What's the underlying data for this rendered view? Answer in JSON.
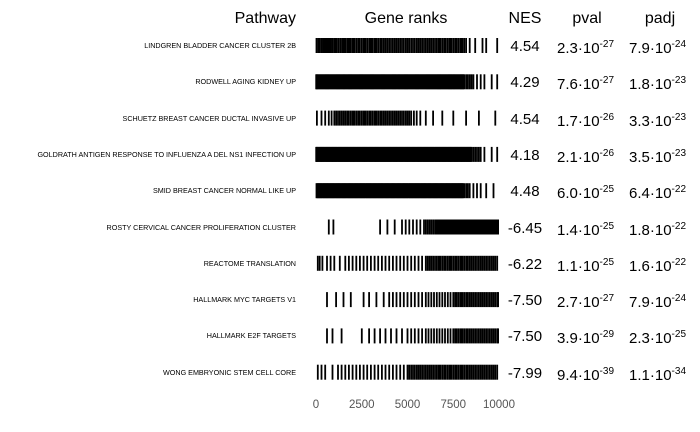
{
  "chart_data": {
    "type": "table",
    "columns": [
      "Pathway",
      "Gene ranks",
      "NES",
      "pval",
      "padj"
    ],
    "x_axis": {
      "ticks": [
        0,
        2500,
        5000,
        7500,
        10000
      ],
      "tick_labels": [
        "0",
        "2500",
        "5000",
        "7500",
        "10000"
      ],
      "xlim": [
        0,
        10000
      ]
    },
    "rows": [
      {
        "pathway": "LINDGREN BLADDER CANCER CLUSTER 2B",
        "nes": "4.54",
        "pval": {
          "mantissa": "2.3",
          "exponent": "-27"
        },
        "padj": {
          "mantissa": "7.9",
          "exponent": "-24"
        },
        "gene_ranks": [
          30,
          120,
          200,
          300,
          380,
          460,
          520,
          560,
          600,
          680,
          760,
          820,
          900,
          1000,
          1080,
          1150,
          1250,
          1350,
          1450,
          1500,
          1550,
          1600,
          1700,
          1800,
          1850,
          1900,
          2000,
          2100,
          2200,
          2300,
          2400,
          2500,
          2600,
          2700,
          2800,
          2900,
          3000,
          3050,
          3100,
          3200,
          3300,
          3400,
          3500,
          3600,
          3700,
          3800,
          3900,
          4000,
          4100,
          4200,
          4300,
          4400,
          4500,
          4600,
          4700,
          4800,
          4900,
          5000,
          5100,
          5200,
          5300,
          5400,
          5500,
          5600,
          5700,
          5800,
          5900,
          6000,
          6100,
          6200,
          6300,
          6400,
          6500,
          6600,
          6700,
          6800,
          6900,
          7000,
          7100,
          7200,
          7300,
          7400,
          7500,
          7600,
          7700,
          7800,
          7900,
          8000,
          8100,
          8200,
          8400,
          8700,
          9100,
          9300,
          9900
        ]
      },
      {
        "pathway": "RODWELL AGING KIDNEY UP",
        "nes": "4.29",
        "pval": {
          "mantissa": "7.6",
          "exponent": "-27"
        },
        "padj": {
          "mantissa": "1.8",
          "exponent": "-23"
        },
        "gene_ranks": [
          10,
          60,
          120,
          180,
          240,
          300,
          360,
          420,
          480,
          540,
          600,
          660,
          720,
          780,
          840,
          900,
          960,
          1020,
          1080,
          1140,
          1200,
          1260,
          1320,
          1380,
          1440,
          1500,
          1560,
          1620,
          1680,
          1740,
          1800,
          1860,
          1920,
          1980,
          2040,
          2100,
          2160,
          2220,
          2280,
          2340,
          2400,
          2460,
          2520,
          2580,
          2640,
          2700,
          2760,
          2820,
          2880,
          2940,
          3000,
          3060,
          3120,
          3180,
          3240,
          3300,
          3360,
          3420,
          3480,
          3540,
          3600,
          3660,
          3720,
          3780,
          3840,
          3900,
          3960,
          4020,
          4080,
          4140,
          4200,
          4260,
          4320,
          4380,
          4440,
          4500,
          4560,
          4620,
          4680,
          4740,
          4800,
          4860,
          4920,
          4980,
          5040,
          5100,
          5160,
          5220,
          5280,
          5340,
          5400,
          5460,
          5520,
          5580,
          5640,
          5700,
          5760,
          5820,
          5880,
          5940,
          6000,
          6060,
          6120,
          6180,
          6240,
          6300,
          6360,
          6420,
          6480,
          6540,
          6600,
          6660,
          6720,
          6780,
          6840,
          6900,
          6960,
          7020,
          7080,
          7140,
          7200,
          7260,
          7320,
          7380,
          7440,
          7500,
          7560,
          7620,
          7680,
          7740,
          7800,
          7860,
          7920,
          7980,
          8040,
          8100,
          8200,
          8300,
          8400,
          8500,
          8600,
          8800,
          9000,
          9200,
          9600,
          9900
        ]
      },
      {
        "pathway": "SCHUETZ BREAST CANCER DUCTAL INVASIVE UP",
        "nes": "4.54",
        "pval": {
          "mantissa": "1.7",
          "exponent": "-26"
        },
        "padj": {
          "mantissa": "3.3",
          "exponent": "-23"
        },
        "gene_ranks": [
          50,
          300,
          500,
          700,
          850,
          1000,
          1100,
          1200,
          1300,
          1400,
          1500,
          1600,
          1700,
          1800,
          1900,
          2000,
          2100,
          2200,
          2300,
          2400,
          2500,
          2600,
          2700,
          2800,
          2900,
          3000,
          3100,
          3200,
          3300,
          3400,
          3500,
          3600,
          3700,
          3800,
          3900,
          4000,
          4100,
          4200,
          4300,
          4400,
          4500,
          4600,
          4700,
          4800,
          4900,
          5000,
          5100,
          5200,
          5350,
          5500,
          5700,
          6000,
          6400,
          6900,
          7500,
          8200,
          8900,
          9800
        ]
      },
      {
        "pathway": "GOLDRATH ANTIGEN RESPONSE TO INFLUENZA A DEL NS1 INFECTION UP",
        "nes": "4.18",
        "pval": {
          "mantissa": "2.1",
          "exponent": "-26"
        },
        "padj": {
          "mantissa": "3.5",
          "exponent": "-23"
        },
        "gene_ranks": [
          10,
          50,
          100,
          150,
          200,
          250,
          300,
          350,
          400,
          450,
          500,
          550,
          600,
          650,
          700,
          750,
          800,
          850,
          900,
          950,
          1000,
          1050,
          1100,
          1150,
          1200,
          1250,
          1300,
          1350,
          1400,
          1450,
          1500,
          1550,
          1600,
          1650,
          1700,
          1750,
          1800,
          1850,
          1900,
          1950,
          2000,
          2050,
          2100,
          2150,
          2200,
          2250,
          2300,
          2350,
          2400,
          2450,
          2500,
          2550,
          2600,
          2650,
          2700,
          2750,
          2800,
          2850,
          2900,
          2950,
          3000,
          3050,
          3100,
          3150,
          3200,
          3250,
          3300,
          3350,
          3400,
          3450,
          3500,
          3550,
          3600,
          3650,
          3700,
          3750,
          3800,
          3850,
          3900,
          3950,
          4000,
          4050,
          4100,
          4150,
          4200,
          4250,
          4300,
          4350,
          4400,
          4450,
          4500,
          4550,
          4600,
          4650,
          4700,
          4750,
          4800,
          4850,
          4900,
          4950,
          5000,
          5050,
          5100,
          5150,
          5200,
          5250,
          5300,
          5350,
          5400,
          5450,
          5500,
          5550,
          5600,
          5650,
          5700,
          5750,
          5800,
          5850,
          5900,
          5950,
          6000,
          6050,
          6100,
          6150,
          6200,
          6250,
          6300,
          6350,
          6400,
          6450,
          6500,
          6550,
          6600,
          6650,
          6700,
          6750,
          6800,
          6850,
          6900,
          6950,
          7000,
          7050,
          7100,
          7150,
          7200,
          7250,
          7300,
          7350,
          7400,
          7450,
          7500,
          7550,
          7600,
          7650,
          7700,
          7750,
          7800,
          7850,
          7900,
          7950,
          8000,
          8050,
          8100,
          8150,
          8200,
          8250,
          8300,
          8350,
          8400,
          8450,
          8500,
          8600,
          8700,
          8800,
          8900,
          9000,
          9200,
          9600,
          9900
        ]
      },
      {
        "pathway": "SMID BREAST CANCER NORMAL LIKE UP",
        "nes": "4.48",
        "pval": {
          "mantissa": "6.0",
          "exponent": "-25"
        },
        "padj": {
          "mantissa": "6.4",
          "exponent": "-22"
        },
        "gene_ranks": [
          30,
          80,
          130,
          180,
          230,
          280,
          330,
          380,
          430,
          480,
          530,
          580,
          630,
          680,
          730,
          780,
          830,
          880,
          930,
          980,
          1030,
          1080,
          1130,
          1180,
          1230,
          1280,
          1330,
          1380,
          1430,
          1480,
          1530,
          1580,
          1630,
          1680,
          1730,
          1780,
          1830,
          1880,
          1930,
          1980,
          2030,
          2080,
          2130,
          2180,
          2230,
          2280,
          2330,
          2380,
          2430,
          2480,
          2530,
          2580,
          2630,
          2680,
          2730,
          2780,
          2830,
          2880,
          2930,
          2980,
          3030,
          3080,
          3130,
          3180,
          3230,
          3280,
          3330,
          3380,
          3430,
          3480,
          3530,
          3580,
          3630,
          3680,
          3730,
          3780,
          3830,
          3880,
          3930,
          3980,
          4030,
          4080,
          4130,
          4180,
          4230,
          4280,
          4330,
          4380,
          4430,
          4480,
          4530,
          4580,
          4630,
          4680,
          4730,
          4780,
          4830,
          4880,
          4930,
          4980,
          5030,
          5080,
          5130,
          5180,
          5230,
          5280,
          5330,
          5380,
          5430,
          5480,
          5530,
          5580,
          5630,
          5680,
          5730,
          5780,
          5830,
          5880,
          5930,
          5980,
          6030,
          6080,
          6130,
          6180,
          6230,
          6280,
          6330,
          6380,
          6430,
          6480,
          6530,
          6580,
          6630,
          6680,
          6730,
          6780,
          6830,
          6880,
          6930,
          6980,
          7030,
          7080,
          7130,
          7180,
          7230,
          7280,
          7330,
          7380,
          7430,
          7480,
          7530,
          7580,
          7630,
          7680,
          7730,
          7780,
          7830,
          7880,
          7930,
          7980,
          8030,
          8100,
          8200,
          8300,
          8400,
          8600,
          8800,
          9000,
          9300,
          9700
        ]
      },
      {
        "pathway": "ROSTY CERVICAL CANCER PROLIFERATION CLUSTER",
        "nes": "-6.45",
        "pval": {
          "mantissa": "1.4",
          "exponent": "-25"
        },
        "padj": {
          "mantissa": "1.8",
          "exponent": "-22"
        },
        "gene_ranks": [
          700,
          950,
          3500,
          3900,
          4300,
          4700,
          4900,
          5100,
          5300,
          5500,
          5700,
          5900,
          6000,
          6100,
          6200,
          6300,
          6400,
          6500,
          6550,
          6600,
          6650,
          6700,
          6750,
          6800,
          6850,
          6900,
          6950,
          7000,
          7050,
          7100,
          7150,
          7200,
          7250,
          7300,
          7350,
          7400,
          7450,
          7500,
          7550,
          7600,
          7650,
          7700,
          7750,
          7800,
          7850,
          7900,
          7950,
          8000,
          8050,
          8100,
          8150,
          8200,
          8250,
          8300,
          8350,
          8400,
          8450,
          8500,
          8550,
          8600,
          8650,
          8700,
          8750,
          8800,
          8850,
          8900,
          8950,
          9000,
          9050,
          9100,
          9150,
          9200,
          9250,
          9300,
          9350,
          9400,
          9450,
          9500,
          9550,
          9600,
          9650,
          9700,
          9750,
          9800,
          9850,
          9900,
          9950
        ]
      },
      {
        "pathway": "REACTOME TRANSLATION",
        "nes": "-6.22",
        "pval": {
          "mantissa": "1.1",
          "exponent": "-25"
        },
        "padj": {
          "mantissa": "1.6",
          "exponent": "-22"
        },
        "gene_ranks": [
          100,
          200,
          350,
          600,
          800,
          1000,
          1300,
          1600,
          1800,
          2000,
          2200,
          2400,
          2600,
          2800,
          3000,
          3200,
          3400,
          3600,
          3800,
          4000,
          4200,
          4400,
          4600,
          4800,
          5000,
          5200,
          5400,
          5600,
          5800,
          6000,
          6100,
          6200,
          6300,
          6400,
          6500,
          6600,
          6700,
          6800,
          6900,
          7000,
          7100,
          7200,
          7300,
          7400,
          7500,
          7600,
          7700,
          7800,
          7900,
          8000,
          8100,
          8200,
          8300,
          8400,
          8500,
          8600,
          8700,
          8800,
          8900,
          9000,
          9100,
          9200,
          9300,
          9400,
          9500,
          9600,
          9700,
          9800,
          9900
        ]
      },
      {
        "pathway": "HALLMARK MYC TARGETS V1",
        "nes": "-7.50",
        "pval": {
          "mantissa": "2.7",
          "exponent": "-27"
        },
        "padj": {
          "mantissa": "7.9",
          "exponent": "-24"
        },
        "gene_ranks": [
          600,
          1100,
          1500,
          1900,
          2600,
          2900,
          3300,
          3700,
          4000,
          4200,
          4400,
          4600,
          4800,
          5000,
          5200,
          5400,
          5600,
          5800,
          6000,
          6150,
          6300,
          6450,
          6600,
          6750,
          6900,
          7050,
          7200,
          7350,
          7500,
          7600,
          7700,
          7800,
          7900,
          8000,
          8100,
          8200,
          8300,
          8400,
          8500,
          8600,
          8700,
          8800,
          8900,
          9000,
          9100,
          9200,
          9300,
          9400,
          9500,
          9600,
          9700,
          9800,
          9900,
          9950
        ]
      },
      {
        "pathway": "HALLMARK E2F TARGETS",
        "nes": "-7.50",
        "pval": {
          "mantissa": "3.9",
          "exponent": "-29"
        },
        "padj": {
          "mantissa": "2.3",
          "exponent": "-25"
        },
        "gene_ranks": [
          600,
          900,
          1400,
          2500,
          2900,
          3200,
          3500,
          3800,
          4100,
          4400,
          4700,
          5000,
          5200,
          5400,
          5600,
          5800,
          6000,
          6150,
          6300,
          6450,
          6600,
          6750,
          6900,
          7050,
          7200,
          7350,
          7500,
          7600,
          7700,
          7800,
          7900,
          8000,
          8100,
          8200,
          8300,
          8400,
          8500,
          8600,
          8700,
          8800,
          8900,
          9000,
          9100,
          9200,
          9300,
          9400,
          9500,
          9600,
          9700,
          9800,
          9900,
          9950
        ]
      },
      {
        "pathway": "WONG EMBRYONIC STEM CELL CORE",
        "nes": "-7.99",
        "pval": {
          "mantissa": "9.4",
          "exponent": "-39"
        },
        "padj": {
          "mantissa": "1.1",
          "exponent": "-34"
        },
        "gene_ranks": [
          100,
          300,
          500,
          900,
          1200,
          1400,
          1600,
          1800,
          2000,
          2200,
          2400,
          2600,
          2800,
          3000,
          3200,
          3400,
          3600,
          3800,
          4000,
          4200,
          4400,
          4600,
          4800,
          5000,
          5100,
          5200,
          5300,
          5400,
          5500,
          5600,
          5700,
          5800,
          5900,
          6000,
          6100,
          6200,
          6300,
          6400,
          6500,
          6600,
          6700,
          6800,
          6900,
          7000,
          7100,
          7200,
          7300,
          7400,
          7500,
          7600,
          7700,
          7800,
          7900,
          8000,
          8100,
          8200,
          8300,
          8400,
          8500,
          8600,
          8700,
          8800,
          8900,
          9000,
          9100,
          9200,
          9300,
          9400,
          9500,
          9600,
          9700,
          9800,
          9900
        ]
      }
    ]
  }
}
